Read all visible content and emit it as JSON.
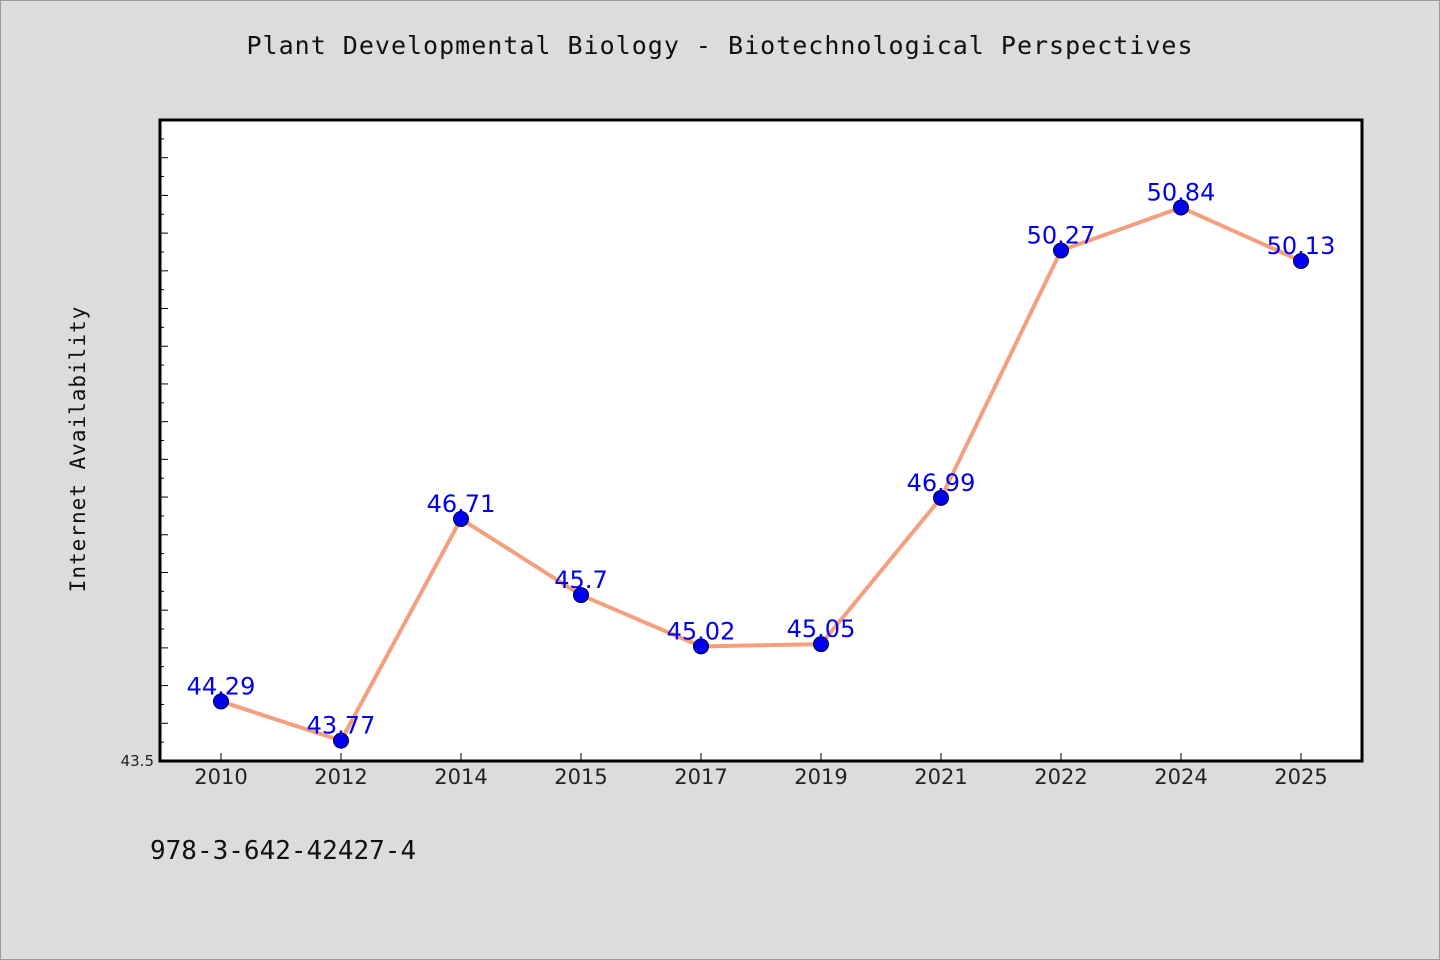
{
  "chart_data": {
    "type": "line",
    "title": "Plant Developmental Biology - Biotechnological Perspectives",
    "xlabel": "",
    "ylabel": "Internet Availability",
    "categories": [
      "2010",
      "2012",
      "2014",
      "2015",
      "2017",
      "2019",
      "2021",
      "2022",
      "2024",
      "2025"
    ],
    "series": [
      {
        "values": [
          44.29,
          43.77,
          46.71,
          45.7,
          45.02,
          45.05,
          46.99,
          50.27,
          50.84,
          50.13
        ],
        "labels": [
          "44.29",
          "43.77",
          "46.71",
          "45.7",
          "45.02",
          "45.05",
          "46.99",
          "50.27",
          "50.84",
          "50.13"
        ],
        "line_color": "#f4a07e",
        "marker_color": "#0000ee"
      }
    ],
    "ylim": [
      43.5,
      52.0
    ],
    "ytick_label": "43.5",
    "grid": false,
    "legend": "none"
  },
  "footer": {
    "isbn": "978-3-642-42427-4"
  },
  "colors": {
    "background": "#dcdcdc",
    "plot_background": "#ffffff",
    "line": "#f4a07e",
    "marker": "#0000ee",
    "label": "#0000ee"
  }
}
